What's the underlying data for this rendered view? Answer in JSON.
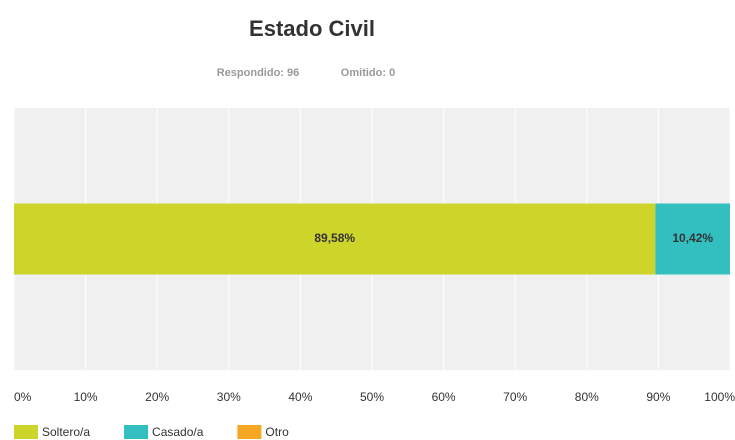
{
  "chart_data": {
    "type": "stacked-bar-horizontal",
    "title": "Estado Civil",
    "subtitle": [
      "Respondido: 96",
      "Omitido: 0"
    ],
    "categories": [
      null
    ],
    "series": [
      {
        "name": "Soltero/a",
        "color": "#cdd42a",
        "values": [
          89.58
        ],
        "value_labels": [
          "89,58%"
        ]
      },
      {
        "name": "Casado/a",
        "color": "#33bfc0",
        "values": [
          10.42
        ],
        "value_labels": [
          "10,42%"
        ]
      },
      {
        "name": "Otro",
        "color": "#f5a623",
        "values": [
          0
        ]
      }
    ],
    "xlim": [
      0,
      100
    ],
    "xticks": [
      {
        "value": 0,
        "label": "0%"
      },
      {
        "value": 10,
        "label": "10%"
      },
      {
        "value": 20,
        "label": "20%"
      },
      {
        "value": 30,
        "label": "30%"
      },
      {
        "value": 40,
        "label": "40%"
      },
      {
        "value": 50,
        "label": "50%"
      },
      {
        "value": 60,
        "label": "60%"
      },
      {
        "value": 70,
        "label": "70%"
      },
      {
        "value": 80,
        "label": "80%"
      },
      {
        "value": 90,
        "label": "90%"
      },
      {
        "value": 100,
        "label": "100%"
      }
    ],
    "grid": true,
    "legend": "bottom-left"
  }
}
